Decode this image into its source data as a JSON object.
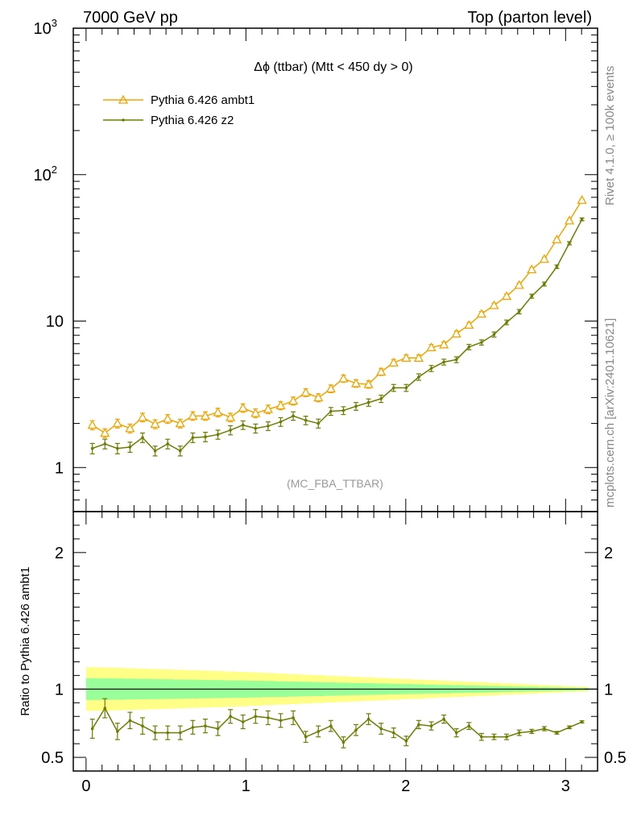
{
  "header": {
    "left": "7000 GeV pp",
    "right": "Top (parton level)"
  },
  "side": {
    "rivet": "Rivet 4.1.0, ≥ 100k events",
    "mcplots": "mcplots.cern.ch [arXiv:2401.10621]"
  },
  "colors": {
    "ambt1": "#f0a500",
    "z2": "#6e7d00",
    "band_outer": "#ffff88",
    "band_inner": "#99ff99"
  },
  "chart_data": {
    "type": "line",
    "title": "Δϕ (ttbar) (Mtt < 450 dy > 0)",
    "watermark": "(MC_FBA_TTBAR)",
    "xlabel": "",
    "ylabel": "",
    "ratio_ylabel": "Ratio to Pythia 6.426 ambt1",
    "xlim": [
      -0.08,
      3.2
    ],
    "ylim": [
      0.5,
      1000
    ],
    "yscale": "log",
    "ratio_ylim": [
      0.4,
      2.3
    ],
    "x_ticks": [
      "0",
      "1",
      "2",
      "3"
    ],
    "y_ticks": [
      "1",
      "10",
      "10",
      "10"
    ],
    "y_tick_exps": [
      "",
      "",
      "2",
      "3"
    ],
    "ratio_y_ticks": [
      "0.5",
      "1",
      "2"
    ],
    "x": [
      0.0393,
      0.1178,
      0.1963,
      0.2749,
      0.3534,
      0.432,
      0.5105,
      0.589,
      0.6676,
      0.7461,
      0.8247,
      0.9032,
      0.9817,
      1.0603,
      1.1388,
      1.2174,
      1.2959,
      1.3744,
      1.453,
      1.5315,
      1.6101,
      1.6886,
      1.7671,
      1.8457,
      1.9242,
      2.0028,
      2.0813,
      2.1598,
      2.2384,
      2.3169,
      2.3955,
      2.474,
      2.5525,
      2.6311,
      2.7096,
      2.7882,
      2.8667,
      2.9452,
      3.0238,
      3.1023
    ],
    "series": [
      {
        "name": "Pythia 6.426 ambt1",
        "marker": "triangle",
        "values": [
          1.95,
          1.72,
          2.0,
          1.85,
          2.2,
          1.98,
          2.15,
          2.0,
          2.25,
          2.25,
          2.38,
          2.2,
          2.55,
          2.35,
          2.5,
          2.65,
          2.85,
          3.25,
          3.0,
          3.45,
          4.05,
          3.75,
          3.7,
          4.5,
          5.2,
          5.6,
          5.6,
          6.6,
          6.9,
          8.2,
          9.4,
          11.2,
          12.8,
          14.8,
          17.6,
          22.5,
          26.5,
          36.0,
          48.5,
          67.0
        ],
        "errors": [
          0.14,
          0.12,
          0.14,
          0.13,
          0.15,
          0.14,
          0.15,
          0.14,
          0.15,
          0.15,
          0.16,
          0.15,
          0.17,
          0.16,
          0.17,
          0.17,
          0.18,
          0.2,
          0.19,
          0.21,
          0.23,
          0.22,
          0.22,
          0.25,
          0.27,
          0.28,
          0.28,
          0.31,
          0.32,
          0.36,
          0.39,
          0.43,
          0.47,
          0.52,
          0.58,
          0.67,
          0.74,
          0.9,
          1.06,
          1.3
        ]
      },
      {
        "name": "Pythia 6.426 z2",
        "marker": "dot",
        "values": [
          1.35,
          1.45,
          1.35,
          1.38,
          1.6,
          1.3,
          1.45,
          1.3,
          1.6,
          1.62,
          1.68,
          1.8,
          1.95,
          1.85,
          1.92,
          2.05,
          2.25,
          2.1,
          2.0,
          2.42,
          2.45,
          2.62,
          2.78,
          2.95,
          3.5,
          3.5,
          4.15,
          4.75,
          5.25,
          5.45,
          6.65,
          7.15,
          8.1,
          9.8,
          11.6,
          14.8,
          17.9,
          23.5,
          34.0,
          49.5
        ],
        "errors": [
          0.11,
          0.11,
          0.11,
          0.11,
          0.12,
          0.1,
          0.11,
          0.1,
          0.12,
          0.12,
          0.12,
          0.13,
          0.13,
          0.13,
          0.13,
          0.14,
          0.15,
          0.14,
          0.14,
          0.15,
          0.15,
          0.16,
          0.16,
          0.17,
          0.19,
          0.19,
          0.21,
          0.23,
          0.24,
          0.25,
          0.28,
          0.29,
          0.32,
          0.36,
          0.4,
          0.47,
          0.54,
          0.65,
          0.85,
          1.1
        ]
      }
    ],
    "ratio": {
      "values": [
        0.71,
        0.86,
        0.69,
        0.77,
        0.73,
        0.68,
        0.68,
        0.68,
        0.72,
        0.73,
        0.71,
        0.8,
        0.76,
        0.8,
        0.79,
        0.77,
        0.79,
        0.65,
        0.69,
        0.73,
        0.61,
        0.7,
        0.78,
        0.71,
        0.68,
        0.62,
        0.74,
        0.73,
        0.78,
        0.68,
        0.73,
        0.65,
        0.65,
        0.65,
        0.68,
        0.69,
        0.71,
        0.68,
        0.72,
        0.76
      ],
      "errors": [
        0.07,
        0.07,
        0.06,
        0.06,
        0.06,
        0.05,
        0.05,
        0.05,
        0.05,
        0.05,
        0.05,
        0.05,
        0.05,
        0.05,
        0.05,
        0.05,
        0.05,
        0.04,
        0.04,
        0.04,
        0.04,
        0.04,
        0.04,
        0.04,
        0.035,
        0.035,
        0.03,
        0.03,
        0.03,
        0.03,
        0.025,
        0.025,
        0.02,
        0.02,
        0.02,
        0.015,
        0.015,
        0.01,
        0.01,
        0.008
      ],
      "band_outer": [
        0.16,
        0.158,
        0.156,
        0.153,
        0.15,
        0.147,
        0.144,
        0.141,
        0.138,
        0.135,
        0.132,
        0.129,
        0.126,
        0.122,
        0.118,
        0.114,
        0.11,
        0.106,
        0.102,
        0.098,
        0.094,
        0.09,
        0.086,
        0.082,
        0.078,
        0.074,
        0.07,
        0.066,
        0.062,
        0.058,
        0.054,
        0.05,
        0.046,
        0.042,
        0.038,
        0.034,
        0.03,
        0.026,
        0.022,
        0.018
      ],
      "band_inner": [
        0.08,
        0.079,
        0.078,
        0.076,
        0.075,
        0.073,
        0.072,
        0.07,
        0.069,
        0.067,
        0.066,
        0.064,
        0.063,
        0.061,
        0.059,
        0.057,
        0.055,
        0.053,
        0.051,
        0.049,
        0.047,
        0.045,
        0.043,
        0.041,
        0.039,
        0.037,
        0.035,
        0.033,
        0.031,
        0.029,
        0.027,
        0.025,
        0.023,
        0.021,
        0.019,
        0.017,
        0.015,
        0.013,
        0.011,
        0.009
      ]
    }
  }
}
